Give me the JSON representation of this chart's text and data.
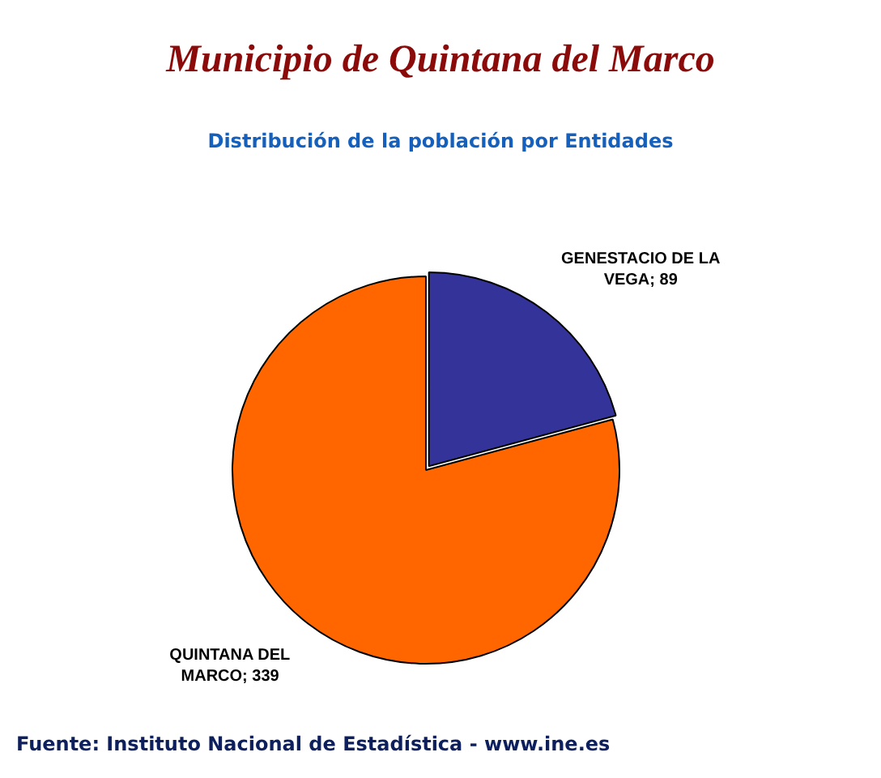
{
  "chart_data": {
    "type": "pie",
    "title": "Municipio de Quintana del Marco",
    "subtitle": "Distribución de la población por Entidades",
    "categories": [
      "GENESTACIO DE LA VEGA",
      "QUINTANA DEL MARCO"
    ],
    "values": [
      89,
      339
    ],
    "colors": [
      "#333399",
      "#ff6600"
    ],
    "value_labels": [
      "; 89",
      "; 339"
    ],
    "legend": false,
    "annotations": [
      "Fuente: Instituto Nacional de Estadística - www.ine.es"
    ]
  }
}
